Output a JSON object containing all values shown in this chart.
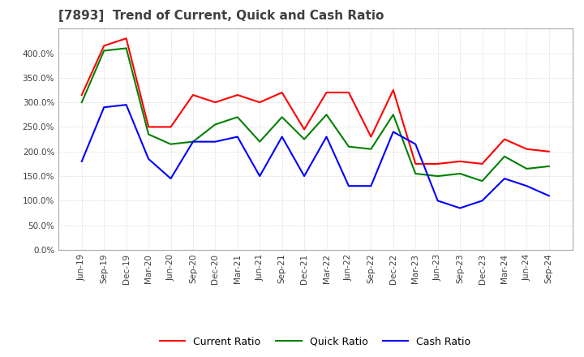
{
  "title": "[7893]  Trend of Current, Quick and Cash Ratio",
  "x_labels": [
    "Jun-19",
    "Sep-19",
    "Dec-19",
    "Mar-20",
    "Jun-20",
    "Sep-20",
    "Dec-20",
    "Mar-21",
    "Jun-21",
    "Sep-21",
    "Dec-21",
    "Mar-22",
    "Jun-22",
    "Sep-22",
    "Dec-22",
    "Mar-23",
    "Jun-23",
    "Sep-23",
    "Dec-23",
    "Mar-24",
    "Jun-24",
    "Sep-24"
  ],
  "current_ratio": [
    315,
    415,
    430,
    250,
    250,
    315,
    300,
    315,
    300,
    320,
    245,
    320,
    320,
    230,
    325,
    175,
    175,
    180,
    175,
    225,
    205,
    200
  ],
  "quick_ratio": [
    300,
    405,
    410,
    235,
    215,
    220,
    255,
    270,
    220,
    270,
    225,
    275,
    210,
    205,
    275,
    155,
    150,
    155,
    140,
    190,
    165,
    170
  ],
  "cash_ratio": [
    180,
    290,
    295,
    185,
    145,
    220,
    220,
    230,
    150,
    230,
    150,
    230,
    130,
    130,
    240,
    215,
    100,
    85,
    100,
    145,
    130,
    110
  ],
  "current_color": "#ff0000",
  "quick_color": "#008000",
  "cash_color": "#0000ff",
  "ylim": [
    0,
    450
  ],
  "yticks": [
    0,
    50,
    100,
    150,
    200,
    250,
    300,
    350,
    400
  ],
  "bg_color": "#ffffff",
  "plot_bg_color": "#ffffff",
  "grid_color": "#cccccc",
  "title_color": "#404040",
  "title_fontsize": 11,
  "legend_labels": [
    "Current Ratio",
    "Quick Ratio",
    "Cash Ratio"
  ]
}
